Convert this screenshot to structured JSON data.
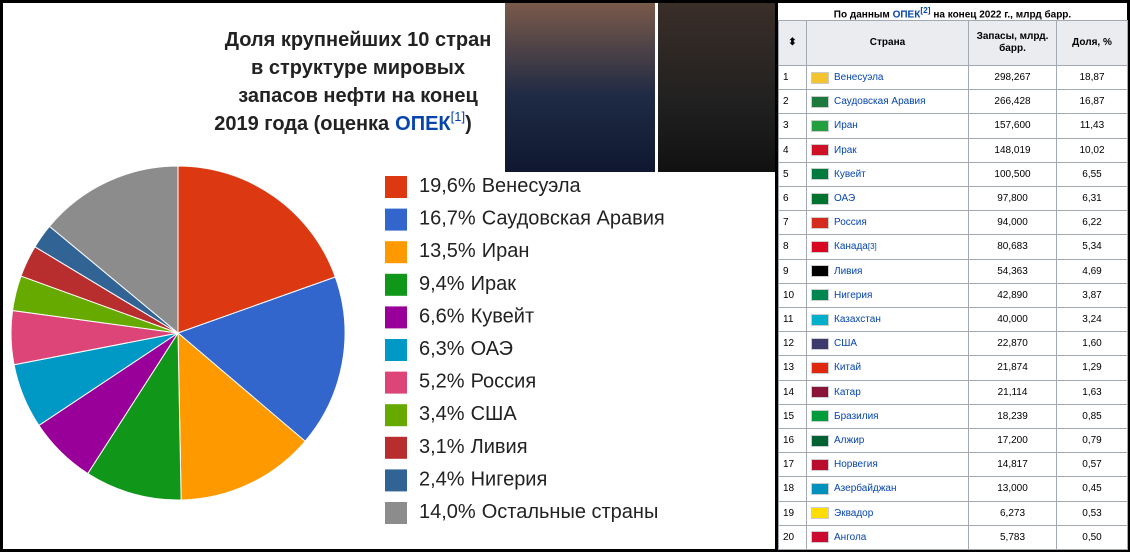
{
  "chart_data": {
    "type": "pie",
    "title_lines": [
      "Доля крупнейших 10 стран",
      "в структуре мировых",
      "запасов нефти на конец",
      "2019 года (оценка"
    ],
    "title_link": "ОПЕК",
    "title_ref": "[1]",
    "title_end": ")",
    "categories": [
      "Венесуэла",
      "Саудовская Аравия",
      "Иран",
      "Ирак",
      "Кувейт",
      "ОАЭ",
      "Россия",
      "США",
      "Ливия",
      "Нигерия",
      "Остальные страны"
    ],
    "values": [
      19.6,
      16.7,
      13.5,
      9.4,
      6.6,
      6.3,
      5.2,
      3.4,
      3.1,
      2.4,
      14.0
    ],
    "value_labels": [
      "19,6%",
      "16,7%",
      "13,5%",
      "9,4%",
      "6,6%",
      "6,3%",
      "5,2%",
      "3,4%",
      "3,1%",
      "2,4%",
      "14,0%"
    ],
    "colors": [
      "#dc3912",
      "#3366cc",
      "#ff9900",
      "#109618",
      "#990099",
      "#0099c6",
      "#dd4477",
      "#66aa00",
      "#b82e2e",
      "#316395",
      "#8c8c8c"
    ]
  },
  "table": {
    "caption_pre": "По данным",
    "caption_link": "ОПЕК",
    "caption_ref": "[2]",
    "caption_post": "на конец 2022 г., млрд барр.",
    "header": [
      "Страна",
      "Запасы, млрд. барр.",
      "Доля, %"
    ],
    "rows": [
      [
        1,
        "Венесуэла",
        "298,267",
        "18,87"
      ],
      [
        2,
        "Саудовская Аравия",
        "266,428",
        "16,87"
      ],
      [
        3,
        "Иран",
        "157,600",
        "11,43"
      ],
      [
        4,
        "Ирак",
        "148,019",
        "10,02"
      ],
      [
        5,
        "Кувейт",
        "100,500",
        "6,55"
      ],
      [
        6,
        "ОАЭ",
        "97,800",
        "6,31"
      ],
      [
        7,
        "Россия",
        "94,000",
        "6,22"
      ],
      [
        8,
        "Канада",
        "80,683",
        "5,34"
      ],
      [
        9,
        "Ливия",
        "54,363",
        "4,69"
      ],
      [
        10,
        "Нигерия",
        "42,890",
        "3,87"
      ],
      [
        11,
        "Казахстан",
        "40,000",
        "3,24"
      ],
      [
        12,
        "США",
        "22,870",
        "1,60"
      ],
      [
        13,
        "Китай",
        "21,874",
        "1,29"
      ],
      [
        14,
        "Катар",
        "21,114",
        "1,63"
      ],
      [
        15,
        "Бразилия",
        "18,239",
        "0,85"
      ],
      [
        16,
        "Алжир",
        "17,200",
        "0,79"
      ],
      [
        17,
        "Норвегия",
        "14,817",
        "0,57"
      ],
      [
        18,
        "Азербайджан",
        "13,000",
        "0,45"
      ],
      [
        19,
        "Эквадор",
        "6,273",
        "0,53"
      ],
      [
        20,
        "Ангола",
        "5,783",
        "0,50"
      ]
    ],
    "row_ref": {
      "row": 7,
      "text": "[3]"
    }
  }
}
